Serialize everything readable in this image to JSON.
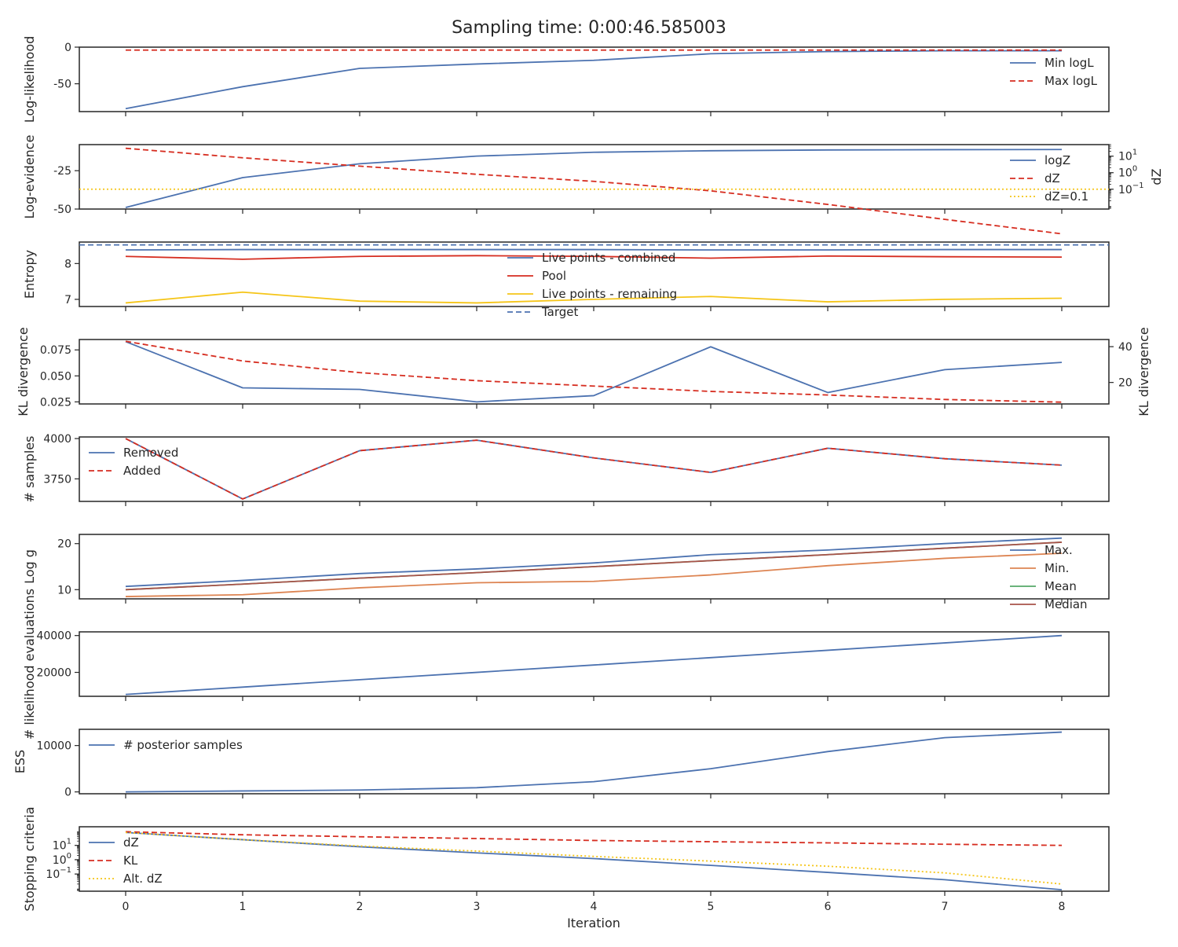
{
  "figure_title": "Sampling time: 0:00:46.585003",
  "shared_xlabel": "Iteration",
  "x_ticks": [
    "0",
    "1",
    "2",
    "3",
    "4",
    "5",
    "6",
    "7",
    "8"
  ],
  "colors": {
    "blue": "#4c72b0",
    "red": "#d62d20",
    "yellow": "#f5c518",
    "orange": "#dd8452",
    "green": "#55a868",
    "brown": "#a8534a",
    "axis": "#262626"
  },
  "chart_data": [
    {
      "type": "line",
      "ylabel": "Log-likelihood",
      "ylim": [
        -88,
        0
      ],
      "yticks": [
        0,
        -50
      ],
      "x": [
        0,
        1,
        2,
        3,
        4,
        5,
        6,
        7,
        8
      ],
      "series": [
        {
          "name": "Min logL",
          "values": [
            -84,
            -54,
            -29,
            -23,
            -18,
            -9,
            -6,
            -5,
            -5
          ],
          "color": "#4c72b0",
          "dash": "solid"
        },
        {
          "name": "Max logL",
          "values": [
            -4,
            -4,
            -4,
            -4,
            -4,
            -4,
            -4,
            -4,
            -4
          ],
          "color": "#d62d20",
          "dash": "dashed"
        }
      ],
      "legend": "right"
    },
    {
      "type": "line",
      "ylabel": "Log-evidence",
      "ylim": [
        -50,
        -8
      ],
      "yticks": [
        -25,
        -50
      ],
      "x": [
        0,
        1,
        2,
        3,
        4,
        5,
        6,
        7,
        8
      ],
      "series": [
        {
          "name": "logZ",
          "values": [
            -49,
            -29.5,
            -20.5,
            -15.5,
            -13,
            -12,
            -11.5,
            -11.3,
            -11.2
          ],
          "color": "#4c72b0",
          "dash": "solid",
          "axis": "left"
        },
        {
          "name": "dZ",
          "values": [
            30,
            8,
            2.5,
            0.8,
            0.3,
            0.08,
            0.012,
            0.0015,
            0.0002
          ],
          "color": "#d62d20",
          "dash": "dashed",
          "axis": "right"
        },
        {
          "name": "dZ=0.1",
          "values": [
            0.1,
            0.1,
            0.1,
            0.1,
            0.1,
            0.1,
            0.1,
            0.1,
            0.1
          ],
          "color": "#f5c518",
          "dash": "dotted",
          "axis": "right",
          "full_width": true
        }
      ],
      "y2label": "dZ",
      "y2scale": "log",
      "y2lim_log10": [
        -2.2,
        1.7
      ],
      "y2ticks": [
        {
          "exp": "1",
          "v": 10
        },
        {
          "exp": "0",
          "v": 1
        },
        {
          "exp": "−1",
          "v": 0.1
        }
      ],
      "legend": "right"
    },
    {
      "type": "line",
      "ylabel": "Entropy",
      "ylim": [
        6.8,
        8.6
      ],
      "yticks": [
        8,
        7
      ],
      "x": [
        0,
        1,
        2,
        3,
        4,
        5,
        6,
        7,
        8
      ],
      "series": [
        {
          "name": "Live points - combined",
          "values": [
            8.38,
            8.39,
            8.39,
            8.39,
            8.39,
            8.38,
            8.38,
            8.39,
            8.39
          ],
          "color": "#4c72b0",
          "dash": "solid"
        },
        {
          "name": "Pool",
          "values": [
            8.2,
            8.12,
            8.2,
            8.22,
            8.2,
            8.15,
            8.21,
            8.19,
            8.18
          ],
          "color": "#d62d20",
          "dash": "solid"
        },
        {
          "name": "Live points - remaining",
          "values": [
            6.9,
            7.2,
            6.95,
            6.9,
            7.0,
            7.08,
            6.93,
            7.0,
            7.03
          ],
          "color": "#f5c518",
          "dash": "solid"
        },
        {
          "name": "Target",
          "values": [
            8.52,
            8.52,
            8.52,
            8.52,
            8.52,
            8.52,
            8.52,
            8.52,
            8.52
          ],
          "color": "#4c72b0",
          "dash": "dashed",
          "full_width": true
        }
      ],
      "legend": "center"
    },
    {
      "type": "line",
      "ylabel": "KL divergence",
      "ylim": [
        0.023,
        0.085
      ],
      "yticks": [
        0.075,
        0.05,
        0.025
      ],
      "ytick_labels": [
        "0.075",
        "0.050",
        "0.025"
      ],
      "x": [
        0,
        1,
        2,
        3,
        4,
        5,
        6,
        7,
        8
      ],
      "series": [
        {
          "name": "",
          "values": [
            0.083,
            0.0385,
            0.037,
            0.025,
            0.031,
            0.078,
            0.034,
            0.056,
            0.063
          ],
          "color": "#4c72b0",
          "dash": "solid",
          "axis": "left"
        },
        {
          "name": "",
          "values": [
            43,
            32,
            25.5,
            21,
            18,
            15,
            13,
            10.5,
            9
          ],
          "color": "#d62d20",
          "dash": "dashed",
          "axis": "right"
        }
      ],
      "y2label": "KL divergence",
      "y2lim": [
        8,
        44
      ],
      "y2ticks": [
        40,
        20
      ]
    },
    {
      "type": "line",
      "ylabel": "# samples",
      "ylim": [
        3610,
        4010
      ],
      "yticks": [
        4000,
        3750
      ],
      "x": [
        0,
        1,
        2,
        3,
        4,
        5,
        6,
        7,
        8
      ],
      "series": [
        {
          "name": "Removed",
          "values": [
            4000,
            3625,
            3925,
            3990,
            3880,
            3790,
            3940,
            3875,
            3835
          ],
          "color": "#4c72b0",
          "dash": "solid"
        },
        {
          "name": "Added",
          "values": [
            4000,
            3625,
            3925,
            3990,
            3880,
            3790,
            3940,
            3875,
            3835
          ],
          "color": "#d62d20",
          "dash": "dashed"
        }
      ],
      "legend": "upper-left"
    },
    {
      "type": "line",
      "ylabel": "Log g",
      "ylim": [
        8,
        22
      ],
      "yticks": [
        20,
        10
      ],
      "x": [
        0,
        1,
        2,
        3,
        4,
        5,
        6,
        7,
        8
      ],
      "series": [
        {
          "name": "Max.",
          "values": [
            10.7,
            12,
            13.5,
            14.5,
            15.8,
            17.6,
            18.6,
            20,
            21.2
          ],
          "color": "#4c72b0",
          "dash": "solid"
        },
        {
          "name": "Min.",
          "values": [
            8.5,
            8.9,
            10.4,
            11.5,
            11.8,
            13.2,
            15.2,
            16.8,
            17.9
          ],
          "color": "#dd8452",
          "dash": "solid"
        },
        {
          "name": "Mean",
          "values": [
            10,
            11.2,
            12.5,
            13.7,
            15,
            16.3,
            17.6,
            19,
            20.3
          ],
          "color": "#55a868",
          "dash": "solid"
        },
        {
          "name": "Median",
          "values": [
            10,
            11.2,
            12.5,
            13.7,
            15,
            16.3,
            17.6,
            19,
            20.3
          ],
          "color": "#a8534a",
          "dash": "solid"
        }
      ],
      "legend": "right"
    },
    {
      "type": "line",
      "ylabel": "# likelihood evaluations",
      "ylim": [
        7000,
        42000
      ],
      "yticks": [
        40000,
        20000
      ],
      "x": [
        0,
        1,
        2,
        3,
        4,
        5,
        6,
        7,
        8
      ],
      "series": [
        {
          "name": "",
          "values": [
            8000,
            12000,
            16000,
            20000,
            24000,
            28000,
            32000,
            36000,
            40000
          ],
          "color": "#4c72b0",
          "dash": "solid"
        }
      ]
    },
    {
      "type": "line",
      "ylabel": "ESS",
      "ylim": [
        -400,
        13500
      ],
      "yticks": [
        10000,
        0
      ],
      "x": [
        0,
        1,
        2,
        3,
        4,
        5,
        6,
        7,
        8
      ],
      "series": [
        {
          "name": "# posterior samples",
          "values": [
            0,
            200,
            400,
            900,
            2200,
            5000,
            8700,
            11700,
            12900
          ],
          "color": "#4c72b0",
          "dash": "solid"
        }
      ],
      "legend": "upper-left"
    },
    {
      "type": "line",
      "ylabel": "Stopping criteria",
      "yscale": "log",
      "ylim_log10": [
        -2.2,
        2.3
      ],
      "yticks": [
        {
          "exp": "1",
          "v": 10
        },
        {
          "exp": "0",
          "v": 1
        },
        {
          "exp": "−1",
          "v": 0.1
        }
      ],
      "x": [
        0,
        1,
        2,
        3,
        4,
        5,
        6,
        7,
        8
      ],
      "series": [
        {
          "name": "dZ",
          "values": [
            80,
            25,
            8,
            3,
            1.2,
            0.4,
            0.13,
            0.04,
            0.008
          ],
          "color": "#4c72b0",
          "dash": "solid"
        },
        {
          "name": "KL",
          "values": [
            90,
            55,
            40,
            30,
            22,
            18,
            15,
            12,
            10
          ],
          "color": "#d62d20",
          "dash": "dashed"
        },
        {
          "name": "Alt. dZ",
          "values": [
            80,
            25,
            9,
            4,
            1.7,
            0.8,
            0.35,
            0.12,
            0.02
          ],
          "color": "#f5c518",
          "dash": "dotted"
        }
      ],
      "legend": "upper-left"
    }
  ]
}
